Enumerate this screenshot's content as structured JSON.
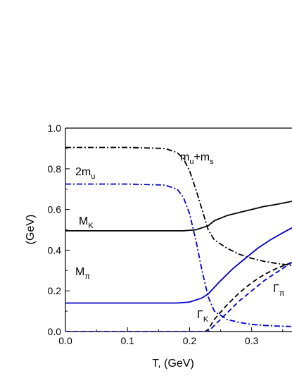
{
  "chart_data": {
    "type": "line",
    "xlabel": "T, (GeV)",
    "ylabel": "(GeV)",
    "xlim": [
      0.0,
      0.365
    ],
    "ylim": [
      0.0,
      1.0
    ],
    "xticks": [
      "0.0",
      "0.1",
      "0.2",
      "0.3"
    ],
    "yticks": [
      "0.0",
      "0.2",
      "0.4",
      "0.6",
      "0.8",
      "1.0"
    ],
    "grid": false,
    "series": [
      {
        "name": "mu+ms",
        "color": "#000000",
        "style": "dash-dot",
        "x": [
          0.0,
          0.1,
          0.16,
          0.18,
          0.19,
          0.2,
          0.21,
          0.22,
          0.23,
          0.24,
          0.26,
          0.28,
          0.3,
          0.32,
          0.34,
          0.365
        ],
        "y": [
          0.905,
          0.905,
          0.9,
          0.88,
          0.85,
          0.79,
          0.7,
          0.6,
          0.5,
          0.45,
          0.41,
          0.38,
          0.36,
          0.345,
          0.335,
          0.325
        ]
      },
      {
        "name": "2mu",
        "color": "#0000cc",
        "style": "dash-dot",
        "x": [
          0.0,
          0.1,
          0.16,
          0.18,
          0.19,
          0.2,
          0.21,
          0.22,
          0.23,
          0.24,
          0.26,
          0.28,
          0.3,
          0.32,
          0.34,
          0.365
        ],
        "y": [
          0.725,
          0.725,
          0.72,
          0.7,
          0.66,
          0.58,
          0.45,
          0.3,
          0.17,
          0.1,
          0.06,
          0.045,
          0.035,
          0.03,
          0.027,
          0.025
        ]
      },
      {
        "name": "MK",
        "color": "#000000",
        "style": "solid",
        "x": [
          0.0,
          0.1,
          0.19,
          0.21,
          0.225,
          0.23,
          0.24,
          0.26,
          0.28,
          0.3,
          0.32,
          0.34,
          0.365
        ],
        "y": [
          0.495,
          0.495,
          0.495,
          0.5,
          0.515,
          0.52,
          0.545,
          0.57,
          0.585,
          0.6,
          0.615,
          0.625,
          0.64
        ]
      },
      {
        "name": "Mpi",
        "color": "#0000cc",
        "style": "solid",
        "x": [
          0.0,
          0.1,
          0.18,
          0.2,
          0.22,
          0.23,
          0.25,
          0.27,
          0.29,
          0.31,
          0.33,
          0.35,
          0.365
        ],
        "y": [
          0.14,
          0.14,
          0.14,
          0.145,
          0.165,
          0.185,
          0.25,
          0.31,
          0.36,
          0.41,
          0.45,
          0.485,
          0.51
        ]
      },
      {
        "name": "GammaK",
        "color": "#000000",
        "style": "dashed",
        "x": [
          0.0,
          0.22,
          0.225,
          0.23,
          0.24,
          0.26,
          0.28,
          0.3,
          0.32,
          0.34,
          0.365
        ],
        "y": [
          0.0,
          0.0,
          0.0,
          0.01,
          0.06,
          0.13,
          0.19,
          0.24,
          0.28,
          0.31,
          0.34
        ]
      },
      {
        "name": "Gammapi",
        "color": "#0000cc",
        "style": "dashed",
        "x": [
          0.0,
          0.225,
          0.23,
          0.24,
          0.26,
          0.28,
          0.3,
          0.32,
          0.34,
          0.365
        ],
        "y": [
          0.0,
          0.0,
          0.0,
          0.03,
          0.09,
          0.15,
          0.2,
          0.25,
          0.29,
          0.34
        ]
      }
    ],
    "annotations": [
      {
        "main": "m",
        "sub1": "u",
        "mid": "+m",
        "sub2": "s"
      },
      {
        "main": "2m",
        "sub1": "u"
      },
      {
        "main": "M",
        "sub1": "K"
      },
      {
        "main": "M",
        "sub1": "π"
      },
      {
        "main": "Γ",
        "sub1": "K"
      },
      {
        "main": "Γ",
        "sub1": "π"
      }
    ]
  }
}
